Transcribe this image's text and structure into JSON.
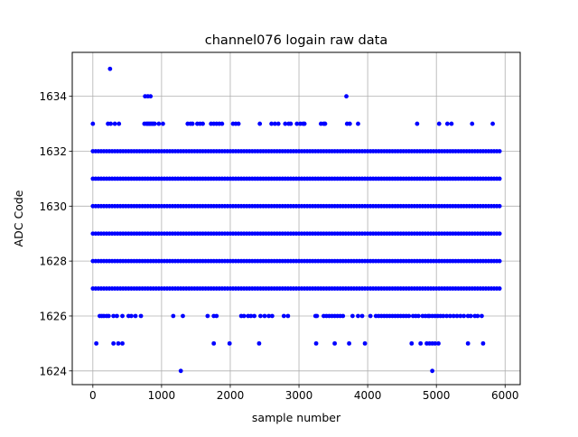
{
  "chart_data": {
    "type": "scatter",
    "title": "channel076 logain raw data",
    "xlabel": "sample number",
    "ylabel": "ADC Code",
    "xlim": [
      -300,
      6220
    ],
    "ylim": [
      1623.5,
      1635.6
    ],
    "xticks": [
      0,
      1000,
      2000,
      3000,
      4000,
      5000,
      6000
    ],
    "yticks": [
      1624,
      1626,
      1628,
      1630,
      1632,
      1634
    ],
    "xtick_labels": [
      "0",
      "1000",
      "2000",
      "3000",
      "4000",
      "5000",
      "6000"
    ],
    "ytick_labels": [
      "1624",
      "1626",
      "1628",
      "1630",
      "1632",
      "1634"
    ],
    "grid": true,
    "marker_color": "#0000ff",
    "sample_range": [
      0,
      5930
    ],
    "dense_levels": [
      1627,
      1628,
      1629,
      1630,
      1631,
      1632
    ],
    "sparse_levels": [
      {
        "value": 1633,
        "x": [
          0,
          220,
          260,
          320,
          380,
          750,
          780,
          800,
          820,
          840,
          860,
          880,
          900,
          960,
          1020,
          1380,
          1420,
          1450,
          1520,
          1560,
          1600,
          1720,
          1760,
          1800,
          1840,
          1880,
          2040,
          2080,
          2120,
          2430,
          2600,
          2650,
          2700,
          2800,
          2850,
          2880,
          2970,
          3020,
          3060,
          3080,
          3320,
          3360,
          3380,
          3700,
          3740,
          3860,
          4720,
          5040,
          5160,
          5220,
          5520,
          5820
        ]
      },
      {
        "value": 1626,
        "x": [
          100,
          130,
          160,
          200,
          230,
          300,
          350,
          430,
          520,
          560,
          620,
          700,
          1170,
          1310,
          1670,
          1760,
          1800,
          2160,
          2200,
          2260,
          2300,
          2350,
          2440,
          2500,
          2560,
          2610,
          2780,
          2840,
          3240,
          3260,
          3360,
          3400,
          3440,
          3480,
          3520,
          3560,
          3600,
          3640,
          3780,
          3860,
          3920,
          4040,
          4120,
          4160,
          4200,
          4240,
          4280,
          4320,
          4360,
          4400,
          4440,
          4480,
          4520,
          4560,
          4600,
          4660,
          4700,
          4740,
          4800,
          4840,
          4880,
          4900,
          4940,
          4980,
          5020,
          5060,
          5100,
          5150,
          5200,
          5250,
          5300,
          5350,
          5400,
          5460,
          5500,
          5560,
          5600,
          5660
        ]
      },
      {
        "value": 1625,
        "x": [
          50,
          300,
          370,
          430,
          1760,
          1990,
          2420,
          3250,
          3520,
          3730,
          3960,
          4640,
          4770,
          4860,
          4900,
          4940,
          4980,
          5030,
          5460,
          5680
        ]
      },
      {
        "value": 1634,
        "x": [
          760,
          800,
          840,
          3690
        ]
      },
      {
        "value": 1635,
        "x": [
          250
        ]
      },
      {
        "value": 1624,
        "x": [
          1280,
          4940
        ]
      }
    ]
  }
}
